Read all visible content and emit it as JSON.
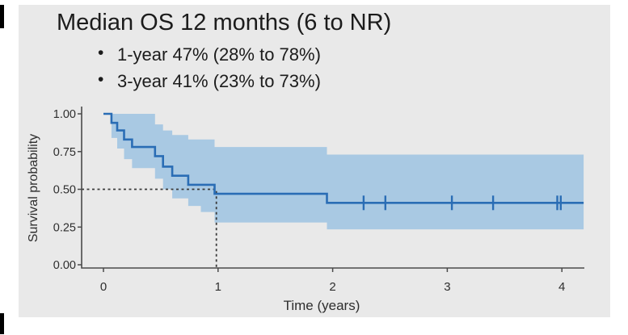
{
  "title": "Median OS 12 months (6 to NR)",
  "bullets": [
    "1-year 47% (28% to 78%)",
    "3-year 41% (23% to 73%)"
  ],
  "chart_data": {
    "type": "line",
    "variant": "kaplan_meier_step",
    "xlabel": "Time (years)",
    "ylabel": "Survival probability",
    "x_ticks": [
      "0",
      "1",
      "2",
      "3",
      "4"
    ],
    "x_tick_values": [
      0,
      1,
      2,
      3,
      4
    ],
    "y_ticks": [
      "1.00",
      "0.75",
      "0.50",
      "0.25",
      "0.00"
    ],
    "y_tick_values": [
      1.0,
      0.75,
      0.5,
      0.25,
      0.0
    ],
    "xlim": [
      -0.19,
      4.19
    ],
    "ylim": [
      0,
      1
    ],
    "grid": false,
    "legend": "none",
    "curve_end_time": 4.19,
    "survival_steps": [
      [
        0,
        1.0
      ],
      [
        0.07,
        0.94
      ],
      [
        0.12,
        0.89
      ],
      [
        0.18,
        0.83
      ],
      [
        0.25,
        0.78
      ],
      [
        0.45,
        0.72
      ],
      [
        0.52,
        0.65
      ],
      [
        0.6,
        0.59
      ],
      [
        0.74,
        0.53
      ],
      [
        0.97,
        0.47
      ],
      [
        1.95,
        0.41
      ]
    ],
    "ci_upper_steps": [
      [
        0.07,
        1.0
      ],
      [
        0.45,
        0.93
      ],
      [
        0.52,
        0.89
      ],
      [
        0.6,
        0.86
      ],
      [
        0.74,
        0.83
      ],
      [
        0.97,
        0.78
      ],
      [
        1.95,
        0.73
      ]
    ],
    "ci_lower_steps": [
      [
        0.07,
        0.84
      ],
      [
        0.12,
        0.77
      ],
      [
        0.18,
        0.7
      ],
      [
        0.25,
        0.64
      ],
      [
        0.45,
        0.57
      ],
      [
        0.52,
        0.5
      ],
      [
        0.6,
        0.44
      ],
      [
        0.74,
        0.39
      ],
      [
        0.85,
        0.35
      ],
      [
        0.97,
        0.28
      ],
      [
        1.95,
        0.235
      ]
    ],
    "censor_marks": {
      "survival": 0.41,
      "times": [
        2.27,
        2.46,
        3.04,
        3.4,
        3.96,
        3.99
      ]
    },
    "median_dashed_lines": {
      "x": 0.985,
      "y": 0.5
    },
    "key_stats": {
      "median_os": "12 months",
      "median_ci": "6 to NR",
      "one_year": "47%",
      "one_year_ci": "28% to 78%",
      "three_year": "41%",
      "three_year_ci": "23% to 73%"
    },
    "colors": {
      "line": "#2a6db5",
      "band": "#a9c9e3",
      "dashes": "#3a3a3a",
      "axis": "#4a4a4a",
      "tick_text": "#2e2e2e",
      "panel_bg": "#e9e9e9"
    }
  }
}
